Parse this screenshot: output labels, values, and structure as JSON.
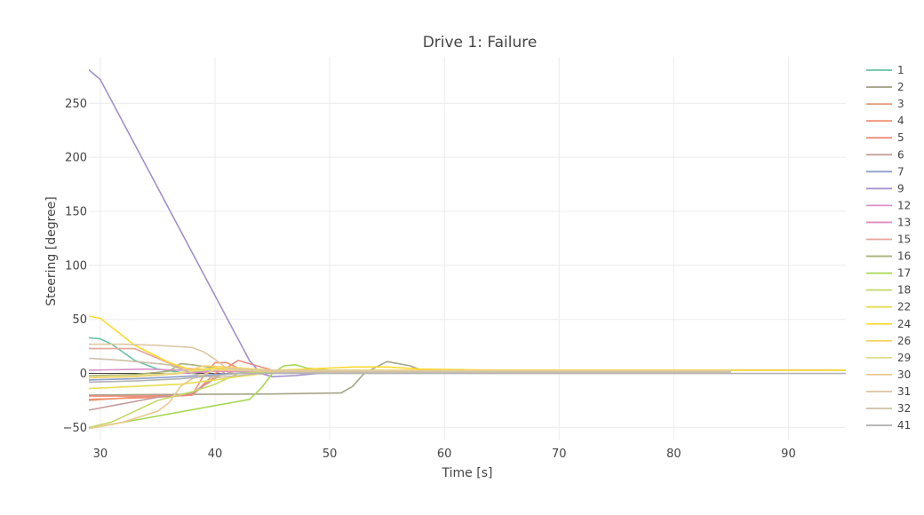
{
  "chart_data": {
    "type": "line",
    "title": "Drive 1: Failure",
    "xlabel": "Time [s]",
    "ylabel": "Steering [degree]",
    "xlim": [
      29,
      95
    ],
    "ylim": [
      -62,
      293
    ],
    "xticks": [
      30,
      40,
      50,
      60,
      70,
      80,
      90
    ],
    "yticks": [
      -50,
      0,
      50,
      100,
      150,
      200,
      250
    ],
    "grid": true,
    "legend_position": "right",
    "colors": {
      "c1": "#66c2a5",
      "c2": "#a5a58a",
      "c3": "#e29b78",
      "c4": "#f28f6e",
      "c5": "#ee8c7d",
      "c6": "#c49a9a",
      "c7": "#8da0cb",
      "c9": "#a28fcb",
      "c12": "#d891c8",
      "c13": "#e38bc2",
      "c15": "#e8a39a",
      "c16": "#aab07a",
      "c17": "#a6d854",
      "c18": "#c3d96a",
      "c22": "#e6dd4f",
      "c24": "#ffd92f",
      "c26": "#f5d468",
      "c29": "#dfdc8e",
      "c30": "#ecc890",
      "c31": "#dcc8a6",
      "c32": "#ccbfa8",
      "c41": "#b3b3b3"
    },
    "series": [
      {
        "name": "1",
        "color": "#66c2a5",
        "points": [
          [
            29,
            33
          ],
          [
            30,
            32
          ],
          [
            31,
            27
          ],
          [
            33,
            12
          ],
          [
            35,
            4
          ],
          [
            37,
            1
          ],
          [
            40,
            2
          ],
          [
            45,
            2
          ],
          [
            60,
            2
          ],
          [
            85,
            2
          ]
        ]
      },
      {
        "name": "2",
        "color": "#a5a58a",
        "points": [
          [
            29,
            -20
          ],
          [
            35,
            -19.5
          ],
          [
            45,
            -19
          ],
          [
            51,
            -18
          ],
          [
            52,
            -12
          ],
          [
            53,
            0
          ],
          [
            55,
            11
          ],
          [
            57,
            7
          ],
          [
            58,
            3
          ],
          [
            65,
            3
          ],
          [
            95,
            3
          ]
        ]
      },
      {
        "name": "3",
        "color": "#e29b78",
        "points": [
          [
            29,
            -25
          ],
          [
            33,
            -22
          ],
          [
            36,
            -21
          ],
          [
            38,
            -20
          ],
          [
            40,
            -3
          ],
          [
            42,
            3
          ],
          [
            45,
            2
          ],
          [
            60,
            2
          ],
          [
            85,
            2
          ]
        ]
      },
      {
        "name": "4",
        "color": "#f28f6e",
        "points": [
          [
            29,
            -24
          ],
          [
            35,
            -22
          ],
          [
            38,
            -20
          ],
          [
            39,
            -2
          ],
          [
            40,
            10
          ],
          [
            41,
            10
          ],
          [
            42,
            5
          ],
          [
            45,
            3
          ],
          [
            60,
            2
          ],
          [
            85,
            2
          ]
        ]
      },
      {
        "name": "5",
        "color": "#ee8c7d",
        "points": [
          [
            29,
            -21
          ],
          [
            34,
            -21
          ],
          [
            38,
            -20
          ],
          [
            40,
            0
          ],
          [
            41,
            5
          ],
          [
            42,
            12
          ],
          [
            43,
            9
          ],
          [
            45,
            3
          ],
          [
            60,
            2
          ],
          [
            85,
            2
          ]
        ]
      },
      {
        "name": "6",
        "color": "#c49a9a",
        "points": [
          [
            29,
            -34
          ],
          [
            32,
            -28
          ],
          [
            35,
            -22
          ],
          [
            38,
            -18
          ],
          [
            40,
            -5
          ],
          [
            41,
            3
          ],
          [
            44,
            2
          ],
          [
            60,
            2
          ],
          [
            85,
            2
          ]
        ]
      },
      {
        "name": "7",
        "color": "#8da0cb",
        "points": [
          [
            29,
            -6
          ],
          [
            33,
            -5
          ],
          [
            37,
            -3
          ],
          [
            40,
            -1
          ],
          [
            43,
            1
          ],
          [
            48,
            1
          ],
          [
            60,
            1
          ],
          [
            85,
            1
          ]
        ]
      },
      {
        "name": "9",
        "color": "#a28fcb",
        "points": [
          [
            29,
            281
          ],
          [
            30,
            272
          ],
          [
            43,
            12
          ],
          [
            44,
            0
          ],
          [
            45,
            -3
          ],
          [
            47,
            -2
          ],
          [
            50,
            1
          ],
          [
            60,
            1
          ],
          [
            85,
            1
          ]
        ]
      },
      {
        "name": "12",
        "color": "#d891c8",
        "points": [
          [
            29,
            3
          ],
          [
            34,
            4
          ],
          [
            37,
            3
          ],
          [
            40,
            3
          ],
          [
            45,
            2
          ],
          [
            60,
            2
          ],
          [
            85,
            2
          ]
        ]
      },
      {
        "name": "13",
        "color": "#e38bc2",
        "points": [
          [
            29,
            -4
          ],
          [
            33,
            -3
          ],
          [
            37,
            0
          ],
          [
            40,
            2
          ],
          [
            45,
            2
          ],
          [
            60,
            2
          ],
          [
            85,
            2
          ]
        ]
      },
      {
        "name": "15",
        "color": "#e8a39a",
        "points": [
          [
            29,
            23
          ],
          [
            33,
            23
          ],
          [
            35,
            14
          ],
          [
            37,
            5
          ],
          [
            40,
            3
          ],
          [
            45,
            3
          ],
          [
            60,
            2
          ],
          [
            85,
            2
          ]
        ]
      },
      {
        "name": "16",
        "color": "#aab07a",
        "points": [
          [
            29,
            -2
          ],
          [
            33,
            -1
          ],
          [
            36,
            2
          ],
          [
            37,
            9
          ],
          [
            38,
            8
          ],
          [
            40,
            5
          ],
          [
            42,
            3
          ],
          [
            45,
            3
          ],
          [
            60,
            2
          ],
          [
            85,
            2
          ]
        ]
      },
      {
        "name": "17",
        "color": "#a6d854",
        "points": [
          [
            29,
            -51
          ],
          [
            43,
            -24
          ],
          [
            44,
            -14
          ],
          [
            45,
            0
          ],
          [
            46,
            7
          ],
          [
            47,
            8
          ],
          [
            48,
            5
          ],
          [
            50,
            3
          ],
          [
            60,
            2
          ],
          [
            85,
            2
          ]
        ]
      },
      {
        "name": "18",
        "color": "#c3d96a",
        "points": [
          [
            29,
            -50
          ],
          [
            31,
            -45
          ],
          [
            35,
            -25
          ],
          [
            38,
            -17
          ],
          [
            40,
            -10
          ],
          [
            42,
            0
          ],
          [
            45,
            2
          ],
          [
            60,
            2
          ],
          [
            85,
            2
          ]
        ]
      },
      {
        "name": "22",
        "color": "#e6dd4f",
        "points": [
          [
            29,
            -14
          ],
          [
            33,
            -12
          ],
          [
            37,
            -10
          ],
          [
            40,
            -6
          ],
          [
            42,
            -3
          ],
          [
            45,
            1
          ],
          [
            60,
            1
          ],
          [
            85,
            1
          ]
        ]
      },
      {
        "name": "24",
        "color": "#ffd92f",
        "points": [
          [
            29,
            53
          ],
          [
            30,
            51
          ],
          [
            33,
            26
          ],
          [
            36,
            10
          ],
          [
            38,
            3
          ],
          [
            40,
            5
          ],
          [
            45,
            3
          ],
          [
            48,
            4
          ],
          [
            52,
            6
          ],
          [
            55,
            6
          ],
          [
            58,
            4
          ],
          [
            65,
            3
          ],
          [
            95,
            3
          ]
        ]
      },
      {
        "name": "26",
        "color": "#f5d468",
        "points": [
          [
            29,
            -4
          ],
          [
            33,
            -3
          ],
          [
            37,
            0
          ],
          [
            39,
            7
          ],
          [
            41,
            6
          ],
          [
            45,
            3
          ],
          [
            60,
            3
          ],
          [
            85,
            3
          ]
        ]
      },
      {
        "name": "29",
        "color": "#dfdc8e",
        "points": [
          [
            29,
            -3
          ],
          [
            33,
            -2
          ],
          [
            36,
            0
          ],
          [
            39,
            3
          ],
          [
            42,
            4
          ],
          [
            45,
            3
          ],
          [
            60,
            2
          ],
          [
            85,
            2
          ]
        ]
      },
      {
        "name": "30",
        "color": "#ecc890",
        "points": [
          [
            29,
            -51
          ],
          [
            32,
            -45
          ],
          [
            35,
            -35
          ],
          [
            36,
            -27
          ],
          [
            37,
            -12
          ],
          [
            38,
            -5
          ],
          [
            40,
            3
          ],
          [
            45,
            2
          ],
          [
            60,
            2
          ],
          [
            85,
            2
          ]
        ]
      },
      {
        "name": "31",
        "color": "#dcc8a6",
        "points": [
          [
            29,
            27
          ],
          [
            32,
            27
          ],
          [
            35,
            26
          ],
          [
            38,
            24
          ],
          [
            39,
            20
          ],
          [
            40,
            13
          ],
          [
            41,
            5
          ],
          [
            43,
            3
          ],
          [
            45,
            3
          ],
          [
            60,
            2
          ],
          [
            85,
            2
          ]
        ]
      },
      {
        "name": "32",
        "color": "#ccbfa8",
        "points": [
          [
            29,
            14
          ],
          [
            32,
            12
          ],
          [
            35,
            9
          ],
          [
            36,
            8
          ],
          [
            38,
            0
          ],
          [
            40,
            -4
          ],
          [
            42,
            -2
          ],
          [
            44,
            0
          ],
          [
            46,
            1
          ],
          [
            60,
            1
          ],
          [
            85,
            1
          ]
        ]
      },
      {
        "name": "41",
        "color": "#b3b3b3",
        "points": [
          [
            29,
            -8
          ],
          [
            33,
            -7
          ],
          [
            37,
            -5
          ],
          [
            40,
            -2
          ],
          [
            42,
            0
          ],
          [
            45,
            0
          ],
          [
            60,
            0
          ],
          [
            95,
            0
          ]
        ]
      }
    ]
  }
}
